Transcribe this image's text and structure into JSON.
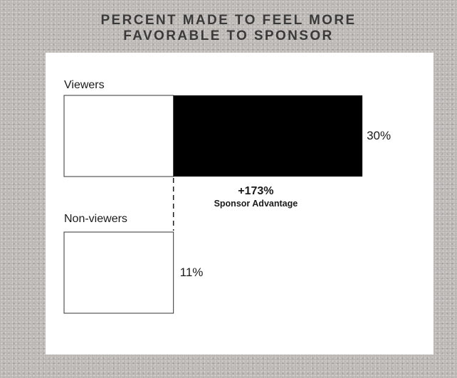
{
  "chart_data": {
    "type": "bar",
    "orientation": "horizontal",
    "title_lines": [
      "PERCENT MADE TO FEEL MORE",
      "FAVORABLE TO SPONSOR"
    ],
    "categories": [
      "Viewers",
      "Non-viewers"
    ],
    "values": [
      30,
      11
    ],
    "value_labels": [
      "30%",
      "11%"
    ],
    "unit": "%",
    "annotation": {
      "value": "+173%",
      "label": "Sponsor Advantage"
    },
    "colors": {
      "baseline_portion": "#ffffff",
      "advantage_portion": "#000000",
      "outline": "#333333",
      "frame": "#b9b6b2"
    },
    "grid": false,
    "legend": "none"
  }
}
